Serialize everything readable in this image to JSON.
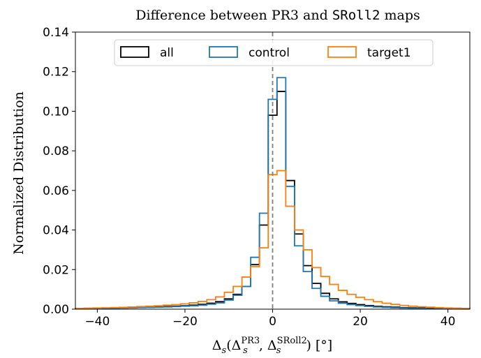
{
  "chart_data": {
    "type": "histogram",
    "title_prefix": "Difference between PR3 and ",
    "title_mono": "SRoll2",
    "title_suffix": " maps",
    "xlabel": {
      "delta": "Δ",
      "sub": "s",
      "sup1": "PR3",
      "sup2": "SRoll2",
      "unit": "[°]"
    },
    "ylabel": "Normalized Distribution",
    "xlim": [
      -45,
      45
    ],
    "ylim": [
      0,
      0.14
    ],
    "xticks": [
      -40,
      -20,
      0,
      20,
      40
    ],
    "xtick_labels": [
      "−40",
      "−20",
      "0",
      "20",
      "40"
    ],
    "yticks": [
      0.0,
      0.02,
      0.04,
      0.06,
      0.08,
      0.1,
      0.12,
      0.14
    ],
    "ytick_labels": [
      "0.00",
      "0.02",
      "0.04",
      "0.06",
      "0.08",
      "0.10",
      "0.12",
      "0.14"
    ],
    "vline_x": 0,
    "legend_position": "top-center",
    "bins": [
      -45,
      -43,
      -41,
      -39,
      -37,
      -35,
      -33,
      -31,
      -29,
      -27,
      -25,
      -23,
      -21,
      -19,
      -17,
      -15,
      -13,
      -11,
      -9,
      -7,
      -5,
      -3,
      -1,
      1,
      3,
      5,
      7,
      9,
      11,
      13,
      15,
      17,
      19,
      21,
      23,
      25,
      27,
      29,
      31,
      33,
      35,
      37,
      39,
      41,
      43,
      45
    ],
    "series": [
      {
        "name": "all",
        "color": "#000000",
        "values": [
          0.0002,
          0.0003,
          0.0004,
          0.0005,
          0.0006,
          0.0007,
          0.0008,
          0.0009,
          0.001,
          0.0012,
          0.0013,
          0.0015,
          0.0017,
          0.002,
          0.0024,
          0.003,
          0.0038,
          0.0052,
          0.0075,
          0.0115,
          0.0225,
          0.0425,
          0.098,
          0.11,
          0.065,
          0.038,
          0.022,
          0.013,
          0.008,
          0.0052,
          0.0037,
          0.0029,
          0.0023,
          0.0018,
          0.0014,
          0.0012,
          0.001,
          0.0008,
          0.0007,
          0.0006,
          0.0005,
          0.0004,
          0.0003,
          0.0003,
          0.0002
        ]
      },
      {
        "name": "control",
        "color": "#1f77b4",
        "values": [
          0.0002,
          0.0002,
          0.0003,
          0.0004,
          0.0005,
          0.0006,
          0.0007,
          0.0008,
          0.0009,
          0.001,
          0.0011,
          0.0013,
          0.0015,
          0.0017,
          0.002,
          0.0025,
          0.0032,
          0.0046,
          0.007,
          0.0115,
          0.0262,
          0.0485,
          0.106,
          0.117,
          0.062,
          0.032,
          0.019,
          0.0105,
          0.0065,
          0.0042,
          0.003,
          0.0023,
          0.0018,
          0.0014,
          0.0011,
          0.0009,
          0.0007,
          0.0006,
          0.0005,
          0.0004,
          0.0003,
          0.0003,
          0.0002,
          0.0002,
          0.0001
        ]
      },
      {
        "name": "target1",
        "color": "#ff7f0e",
        "values": [
          0.0004,
          0.0005,
          0.0006,
          0.0007,
          0.0008,
          0.0009,
          0.0011,
          0.0013,
          0.0015,
          0.0017,
          0.002,
          0.0023,
          0.0027,
          0.0032,
          0.0039,
          0.0048,
          0.0062,
          0.0085,
          0.0115,
          0.0162,
          0.0215,
          0.031,
          0.068,
          0.07,
          0.052,
          0.04,
          0.03,
          0.021,
          0.0165,
          0.0125,
          0.0095,
          0.0075,
          0.006,
          0.0048,
          0.0038,
          0.003,
          0.0024,
          0.0019,
          0.0015,
          0.0012,
          0.001,
          0.0008,
          0.0006,
          0.0005,
          0.0004
        ]
      }
    ]
  }
}
